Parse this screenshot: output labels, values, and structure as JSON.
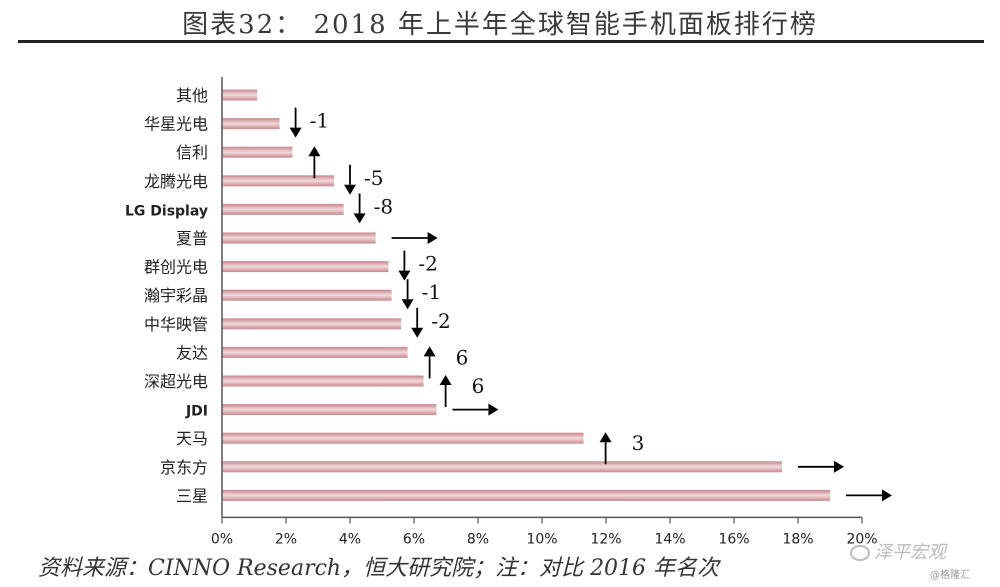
{
  "title": "图表32： 2018 年上半年全球智能手机面板排行榜",
  "footer": "资料来源：CINNO Research，恒大研究院；注：对比 2016 年名次",
  "watermark": "泽平宏观",
  "watermark_sub": "@格隆汇",
  "chart_data": {
    "type": "bar",
    "orientation": "horizontal",
    "categories": [
      "其他",
      "华星光电",
      "信利",
      "龙腾光电",
      "LG Display",
      "夏普",
      "群创光电",
      "瀚宇彩晶",
      "中华映管",
      "友达",
      "深超光电",
      "JDI",
      "天马",
      "京东方",
      "三星"
    ],
    "values": [
      1.1,
      1.8,
      2.2,
      3.5,
      3.8,
      4.8,
      5.2,
      5.3,
      5.6,
      5.8,
      6.3,
      6.7,
      11.3,
      17.5,
      19.0
    ],
    "xlim": [
      0,
      20
    ],
    "xticks": [
      "0%",
      "2%",
      "4%",
      "6%",
      "8%",
      "10%",
      "12%",
      "14%",
      "16%",
      "18%",
      "20%"
    ],
    "rank_change": [
      {
        "category": "华星光电",
        "direction": "down",
        "label": "-1"
      },
      {
        "category": "信利",
        "direction": "up",
        "label": ""
      },
      {
        "category": "龙腾光电",
        "direction": "down",
        "label": "-5"
      },
      {
        "category": "LG Display",
        "direction": "down",
        "label": "-8"
      },
      {
        "category": "夏普",
        "direction": "same",
        "label": ""
      },
      {
        "category": "群创光电",
        "direction": "down",
        "label": "-2"
      },
      {
        "category": "瀚宇彩晶",
        "direction": "down",
        "label": "-1"
      },
      {
        "category": "中华映管",
        "direction": "down",
        "label": "-2"
      },
      {
        "category": "友达",
        "direction": "up",
        "label": "6"
      },
      {
        "category": "深超光电",
        "direction": "up",
        "label": "6"
      },
      {
        "category": "JDI",
        "direction": "same",
        "label": ""
      },
      {
        "category": "天马",
        "direction": "up",
        "label": "3"
      },
      {
        "category": "京东方",
        "direction": "same",
        "label": ""
      },
      {
        "category": "三星",
        "direction": "same",
        "label": ""
      }
    ],
    "colors": {
      "bar_dark": "#c8868c",
      "bar_light": "#f1dadc",
      "axis": "#444444"
    }
  }
}
